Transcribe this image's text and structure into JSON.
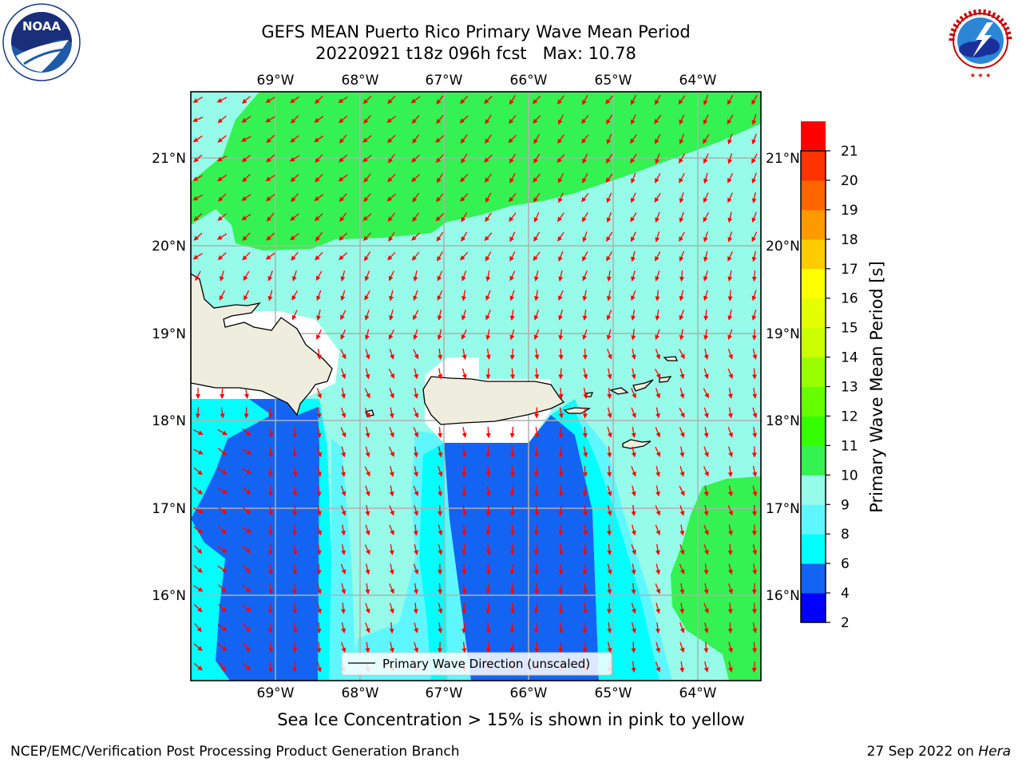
{
  "title": {
    "line1": "GEFS MEAN Puerto Rico Primary Wave Mean Period",
    "line2": "20220921 t18z 096h fcst   Max: 10.78"
  },
  "logos": {
    "left": {
      "text": "NOAA",
      "ring": "NATIONAL OCEANIC AND ATMOSPHERIC ADMINISTRATION · U.S. DEPARTMENT OF COMMERCE"
    },
    "right": {
      "ring": "NATIONAL WEATHER SERVICE"
    }
  },
  "map": {
    "lon_labels": [
      "69°W",
      "68°W",
      "67°W",
      "66°W",
      "65°W",
      "64°W"
    ],
    "lat_labels": [
      "21°N",
      "20°N",
      "19°N",
      "18°N",
      "17°N",
      "16°N"
    ],
    "legend_label": "Primary Wave Direction (unscaled)",
    "colors": {
      "land": "#efedde",
      "arrow": "#ff0000",
      "grid": "#b0b0b0"
    }
  },
  "colorbar": {
    "label": "Primary Wave Mean Period [s]",
    "ticks": [
      "2",
      "4",
      "6",
      "8",
      "9",
      "10",
      "11",
      "12",
      "13",
      "14",
      "15",
      "16",
      "17",
      "18",
      "19",
      "20",
      "21"
    ],
    "colors": [
      "#0000ff",
      "#1464f4",
      "#00ffff",
      "#5ef7ff",
      "#96fbe8",
      "#33f251",
      "#33ff00",
      "#66ff00",
      "#99ff00",
      "#cbff00",
      "#e6ff00",
      "#ffff00",
      "#ffcc00",
      "#ff9900",
      "#ff6600",
      "#ff3300",
      "#ff0000"
    ]
  },
  "subcaption": "Sea Ice Concentration > 15% is shown in pink to yellow",
  "credits": {
    "left": "NCEP/EMC/Verification Post Processing Product Generation Branch",
    "right_date": "27 Sep 2022 on ",
    "right_host": "Hera"
  }
}
